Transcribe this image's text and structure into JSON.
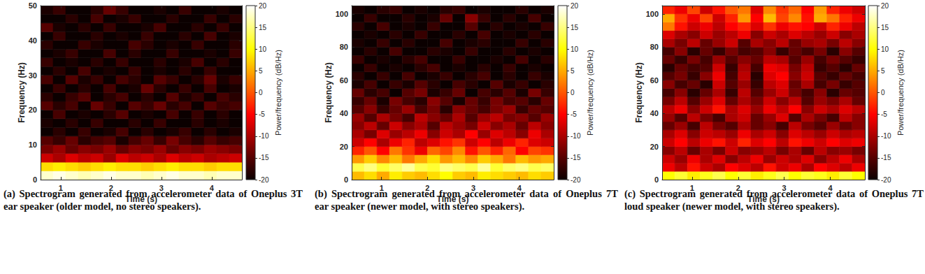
{
  "chart_data": [
    {
      "type": "heatmap",
      "caption": "(a) Spectrogram generated from accelerometer data of Oneplus 3T ear speaker (older model, no stereo speakers).",
      "x_label": "Time (s)",
      "y_label": "Frequency (Hz)",
      "xlim": [
        0.6,
        4.6
      ],
      "xticks": [
        1,
        2,
        3,
        4
      ],
      "ylim": [
        0,
        50
      ],
      "yticks": [
        0,
        10,
        20,
        30,
        40,
        50
      ],
      "time_edges": [
        0.6,
        0.85,
        1.1,
        1.35,
        1.6,
        1.85,
        2.1,
        2.35,
        2.6,
        2.85,
        3.1,
        3.35,
        3.6,
        3.85,
        4.1,
        4.35,
        4.6
      ],
      "freq_edges": [
        0,
        2.5,
        5,
        7.5,
        10,
        12.5,
        15,
        17.5,
        20,
        22.5,
        25,
        27.5,
        30,
        32.5,
        35,
        37.5,
        40,
        42.5,
        45,
        47.5,
        50
      ],
      "power": [
        [
          18,
          19,
          18,
          17,
          18,
          19,
          18,
          18,
          17,
          18,
          19,
          18,
          18,
          17,
          18,
          18
        ],
        [
          8,
          9,
          8,
          7,
          8,
          9,
          8,
          8,
          7,
          8,
          9,
          8,
          8,
          7,
          8,
          8
        ],
        [
          -8,
          -10,
          -7,
          -9,
          -8,
          -11,
          -7,
          -9,
          -8,
          -10,
          -7,
          -9,
          -8,
          -10,
          -9,
          -8
        ],
        [
          -13,
          -11,
          -14,
          -12,
          -13,
          -11,
          -14,
          -12,
          -13,
          -11,
          -14,
          -12,
          -13,
          -11,
          -12,
          -13
        ],
        [
          -15,
          -17,
          -14,
          -18,
          -16,
          -15,
          -19,
          -16,
          -14,
          -17,
          -13,
          -16,
          -18,
          -15,
          -17,
          -16
        ],
        [
          -20,
          -18,
          -20,
          -17,
          -20,
          -19,
          -16,
          -20,
          -18,
          -20,
          -19,
          -17,
          -20,
          -18,
          -20,
          -19
        ],
        [
          -19,
          -20,
          -18,
          -20,
          -17,
          -20,
          -20,
          -18,
          -20,
          -17,
          -20,
          -20,
          -18,
          -20,
          -19,
          -20
        ],
        [
          -20,
          -16,
          -20,
          -19,
          -20,
          -18,
          -15,
          -20,
          -19,
          -20,
          -16,
          -20,
          -17,
          -20,
          -18,
          -20
        ],
        [
          -15,
          -18,
          -16,
          -20,
          -14,
          -17,
          -20,
          -15,
          -17,
          -14,
          -18,
          -16,
          -20,
          -15,
          -17,
          -16
        ],
        [
          -18,
          -20,
          -17,
          -15,
          -20,
          -18,
          -16,
          -20,
          -18,
          -20,
          -15,
          -19,
          -17,
          -20,
          -16,
          -18
        ],
        [
          -20,
          -17,
          -20,
          -18,
          -20,
          -16,
          -20,
          -19,
          -14,
          -18,
          -20,
          -17,
          -20,
          -16,
          -20,
          -19
        ],
        [
          -16,
          -20,
          -15,
          -19,
          -17,
          -20,
          -16,
          -18,
          -20,
          -15,
          -17,
          -20,
          -18,
          -14,
          -19,
          -17
        ],
        [
          -20,
          -18,
          -20,
          -16,
          -20,
          -19,
          -20,
          -17,
          -20,
          -19,
          -20,
          -18,
          -20,
          -17,
          -20,
          -20
        ],
        [
          -17,
          -20,
          -19,
          -20,
          -18,
          -20,
          -17,
          -20,
          -20,
          -18,
          -20,
          -19,
          -16,
          -20,
          -18,
          -20
        ],
        [
          -20,
          -19,
          -17,
          -20,
          -20,
          -16,
          -20,
          -18,
          -20,
          -20,
          -17,
          -20,
          -20,
          -19,
          -20,
          -17
        ],
        [
          -18,
          -20,
          -20,
          -17,
          -19,
          -20,
          -20,
          -16,
          -18,
          -20,
          -19,
          -20,
          -17,
          -20,
          -20,
          -18
        ],
        [
          -20,
          -17,
          -20,
          -20,
          -18,
          -20,
          -19,
          -20,
          -17,
          -20,
          -20,
          -18,
          -20,
          -16,
          -20,
          -19
        ],
        [
          -15,
          -19,
          -20,
          -18,
          -20,
          -17,
          -20,
          -20,
          -19,
          -16,
          -20,
          -20,
          -18,
          -20,
          -17,
          -20
        ],
        [
          -20,
          -20,
          -18,
          -20,
          -16,
          -20,
          -19,
          -17,
          -20,
          -20,
          -18,
          -20,
          -20,
          -17,
          -20,
          -18
        ],
        [
          -19,
          -17,
          -20,
          -20,
          -18,
          -14,
          -17,
          -20,
          -20,
          -19,
          -20,
          -17,
          -20,
          -20,
          -19,
          -20
        ]
      ],
      "colorbar": {
        "label": "Power/frequency (dB/Hz)",
        "range": [
          -20,
          20
        ],
        "ticks": [
          -20,
          -15,
          -10,
          -5,
          0,
          5,
          10,
          15,
          20
        ]
      }
    },
    {
      "type": "heatmap",
      "caption": "(b) Spectrogram generated from accelerometer data of Oneplus 7T ear speaker (newer model, with stereo speakers).",
      "x_label": "Time (s)",
      "y_label": "Frequency (Hz)",
      "xlim": [
        0.35,
        4.75
      ],
      "xticks": [
        1,
        2,
        3,
        4
      ],
      "ylim": [
        0,
        105
      ],
      "yticks": [
        0,
        20,
        40,
        60,
        80,
        100
      ],
      "time_edges": [
        0.35,
        0.625,
        0.9,
        1.175,
        1.45,
        1.725,
        2,
        2.275,
        2.55,
        2.825,
        3.1,
        3.375,
        3.65,
        3.925,
        4.2,
        4.475,
        4.75
      ],
      "freq_edges": [
        0,
        5,
        10,
        15,
        20,
        25,
        30,
        35,
        40,
        45,
        50,
        55,
        60,
        65,
        70,
        75,
        80,
        85,
        90,
        95,
        100,
        105
      ],
      "power": [
        [
          6,
          8,
          5,
          9,
          7,
          6,
          8,
          10,
          7,
          6,
          9,
          8,
          7,
          6,
          8,
          7
        ],
        [
          13,
          15,
          12,
          14,
          16,
          13,
          12,
          15,
          14,
          13,
          16,
          12,
          14,
          15,
          13,
          14
        ],
        [
          4,
          7,
          3,
          6,
          2,
          5,
          8,
          4,
          6,
          3,
          7,
          5,
          2,
          6,
          4,
          5
        ],
        [
          -3,
          0,
          -5,
          2,
          -2,
          -6,
          1,
          -1,
          3,
          -4,
          0,
          -3,
          1,
          -5,
          -1,
          -2
        ],
        [
          -8,
          -5,
          -10,
          -6,
          -3,
          -9,
          -7,
          -4,
          -2,
          -8,
          -5,
          -9,
          -6,
          -3,
          -7,
          -8
        ],
        [
          -10,
          -13,
          -7,
          -11,
          -9,
          -6,
          -12,
          -8,
          -10,
          -5,
          -11,
          -7,
          -9,
          -12,
          -6,
          -10
        ],
        [
          -12,
          -9,
          -14,
          -8,
          -12,
          -10,
          -15,
          -9,
          -11,
          -13,
          -8,
          -12,
          -10,
          -14,
          -9,
          -12
        ],
        [
          -11,
          -15,
          -10,
          -13,
          -16,
          -9,
          -12,
          -14,
          -10,
          -15,
          -11,
          -9,
          -13,
          -12,
          -15,
          -11
        ],
        [
          -15,
          -12,
          -17,
          -14,
          -11,
          -16,
          -13,
          -18,
          -12,
          -14,
          -16,
          -13,
          -11,
          -17,
          -14,
          -15
        ],
        [
          -17,
          -14,
          -19,
          -13,
          -16,
          -18,
          -12,
          -15,
          -19,
          -14,
          -17,
          -13,
          -16,
          -15,
          -18,
          -14
        ],
        [
          -14,
          -18,
          -16,
          -20,
          -15,
          -13,
          -19,
          -17,
          -14,
          -20,
          -16,
          -18,
          -15,
          -19,
          -13,
          -17
        ],
        [
          -19,
          -16,
          -20,
          -17,
          -19,
          -15,
          -18,
          -20,
          -16,
          -18,
          -20,
          -15,
          -19,
          -17,
          -20,
          -18
        ],
        [
          -18,
          -20,
          -17,
          -20,
          -16,
          -20,
          -19,
          -17,
          -20,
          -18,
          -16,
          -20,
          -18,
          -20,
          -17,
          -19
        ],
        [
          -20,
          -17,
          -20,
          -19,
          -20,
          -18,
          -16,
          -20,
          -19,
          -20,
          -18,
          -20,
          -17,
          -20,
          -19,
          -20
        ],
        [
          -17,
          -20,
          -19,
          -20,
          -18,
          -16,
          -20,
          -20,
          -17,
          -20,
          -20,
          -19,
          -20,
          -16,
          -20,
          -18
        ],
        [
          -20,
          -18,
          -20,
          -16,
          -20,
          -20,
          -18,
          -19,
          -20,
          -17,
          -20,
          -20,
          -18,
          -20,
          -19,
          -20
        ],
        [
          -19,
          -20,
          -17,
          -20,
          -18,
          -20,
          -20,
          -16,
          -20,
          -19,
          -18,
          -20,
          -20,
          -17,
          -20,
          -18
        ],
        [
          -20,
          -19,
          -20,
          -18,
          -20,
          -17,
          -20,
          -20,
          -18,
          -20,
          -16,
          -20,
          -19,
          -20,
          -18,
          -20
        ],
        [
          -18,
          -20,
          -16,
          -20,
          -19,
          -20,
          -17,
          -20,
          -20,
          -15,
          -20,
          -18,
          -20,
          -19,
          -20,
          -17
        ],
        [
          -20,
          -17,
          -20,
          -20,
          -18,
          -20,
          -19,
          -14,
          -20,
          -12,
          -17,
          -20,
          -18,
          -20,
          -16,
          -20
        ],
        [
          -19,
          -20,
          -18,
          -17,
          -20,
          -19,
          -20,
          -18,
          -17,
          -20,
          -19,
          -20,
          -20,
          -18,
          -20,
          -19
        ]
      ],
      "colorbar": {
        "label": "Power/frequency (dB/Hz)",
        "range": [
          -20,
          20
        ],
        "ticks": [
          -20,
          -15,
          -10,
          -5,
          0,
          5,
          10,
          15,
          20
        ]
      }
    },
    {
      "type": "heatmap",
      "caption": "(c) Spectrogram generated from accelerometer data of Oneplus 7T loud speaker (newer model, with stereo speakers).",
      "x_label": "Time (s)",
      "y_label": "Frequency (Hz)",
      "xlim": [
        0.35,
        4.75
      ],
      "xticks": [
        1,
        2,
        3,
        4
      ],
      "ylim": [
        0,
        105
      ],
      "yticks": [
        0,
        20,
        40,
        60,
        80,
        100
      ],
      "time_edges": [
        0.35,
        0.625,
        0.9,
        1.175,
        1.45,
        1.725,
        2,
        2.275,
        2.55,
        2.825,
        3.1,
        3.375,
        3.65,
        3.925,
        4.2,
        4.475,
        4.75
      ],
      "freq_edges": [
        0,
        5,
        10,
        15,
        20,
        25,
        30,
        35,
        40,
        45,
        50,
        55,
        60,
        65,
        70,
        75,
        80,
        85,
        90,
        95,
        100,
        105
      ],
      "power": [
        [
          10,
          12,
          9,
          11,
          13,
          10,
          12,
          9,
          11,
          13,
          10,
          12,
          11,
          9,
          12,
          10
        ],
        [
          -6,
          -9,
          -4,
          -8,
          -10,
          -5,
          -7,
          -9,
          -4,
          -8,
          -6,
          -10,
          -5,
          -7,
          -9,
          -6
        ],
        [
          -8,
          -11,
          -6,
          -10,
          -7,
          -12,
          -9,
          -6,
          -11,
          -8,
          -10,
          -7,
          -12,
          -9,
          -6,
          -10
        ],
        [
          -12,
          -9,
          -14,
          -10,
          -13,
          -8,
          -12,
          -11,
          -9,
          -13,
          -10,
          -14,
          -9,
          -12,
          -11,
          -13
        ],
        [
          -8,
          -5,
          -9,
          -6,
          -4,
          -8,
          -3,
          -7,
          -5,
          -9,
          -4,
          -6,
          -8,
          -5,
          -7,
          -6
        ],
        [
          -10,
          -7,
          -12,
          -8,
          -9,
          -11,
          -6,
          -10,
          -8,
          -12,
          -7,
          -9,
          -11,
          -8,
          -10,
          -9
        ],
        [
          -14,
          -11,
          -16,
          -9,
          -13,
          -15,
          -10,
          -14,
          -12,
          -16,
          -9,
          -13,
          -15,
          -11,
          -14,
          -12
        ],
        [
          -11,
          -15,
          -9,
          -13,
          -16,
          -10,
          -8,
          -14,
          -11,
          -7,
          -15,
          -10,
          -13,
          -16,
          -9,
          -12
        ],
        [
          -9,
          -6,
          -12,
          -8,
          -4,
          -10,
          -7,
          -11,
          -6,
          -9,
          -5,
          -12,
          -8,
          -10,
          -7,
          -9
        ],
        [
          -13,
          -9,
          -15,
          -11,
          -7,
          -14,
          -10,
          -13,
          -8,
          -12,
          -9,
          -15,
          -11,
          -13,
          -10,
          -14
        ],
        [
          -16,
          -12,
          -18,
          -14,
          -10,
          -17,
          -9,
          -15,
          -11,
          -8,
          -13,
          -16,
          -12,
          -18,
          -14,
          -15
        ],
        [
          -12,
          -16,
          -14,
          -18,
          -8,
          -15,
          -11,
          -17,
          -9,
          -7,
          -14,
          -10,
          -16,
          -13,
          -17,
          -15
        ],
        [
          -15,
          -13,
          -17,
          -12,
          -6,
          -16,
          -9,
          -18,
          -7,
          -5,
          -12,
          -8,
          -15,
          -17,
          -14,
          -16
        ],
        [
          -18,
          -14,
          -16,
          -15,
          -8,
          -17,
          -10,
          -16,
          -6,
          -7,
          -13,
          -9,
          -17,
          -15,
          -18,
          -14
        ],
        [
          -14,
          -17,
          -13,
          -16,
          -11,
          -15,
          -12,
          -14,
          -9,
          -10,
          -15,
          -11,
          -16,
          -13,
          -15,
          -17
        ],
        [
          -16,
          -12,
          -18,
          -14,
          -17,
          -13,
          -16,
          -15,
          -12,
          -17,
          -14,
          -16,
          -13,
          -18,
          -12,
          -15
        ],
        [
          -10,
          -13,
          -9,
          -14,
          -11,
          -8,
          -15,
          -10,
          -12,
          -9,
          -14,
          -11,
          -10,
          -13,
          -9,
          -12
        ],
        [
          -7,
          -10,
          -12,
          -8,
          -11,
          -9,
          -6,
          -12,
          -8,
          -10,
          -7,
          -9,
          -11,
          -8,
          -12,
          -10
        ],
        [
          2,
          -4,
          -8,
          -6,
          -9,
          -5,
          -3,
          -7,
          -2,
          -6,
          -4,
          -5,
          -8,
          -3,
          -6,
          -9
        ],
        [
          5,
          -2,
          -6,
          -1,
          -8,
          -3,
          4,
          -5,
          6,
          -1,
          3,
          -4,
          5,
          2,
          -3,
          -6
        ],
        [
          -3,
          -6,
          -1,
          -8,
          -4,
          0,
          2,
          -7,
          3,
          -2,
          1,
          -5,
          4,
          -3,
          -6,
          -8
        ]
      ],
      "colorbar": {
        "label": "Power/frequency (dB/Hz)",
        "range": [
          -20,
          20
        ],
        "ticks": [
          -20,
          -15,
          -10,
          -5,
          0,
          5,
          10,
          15,
          20
        ]
      }
    }
  ]
}
